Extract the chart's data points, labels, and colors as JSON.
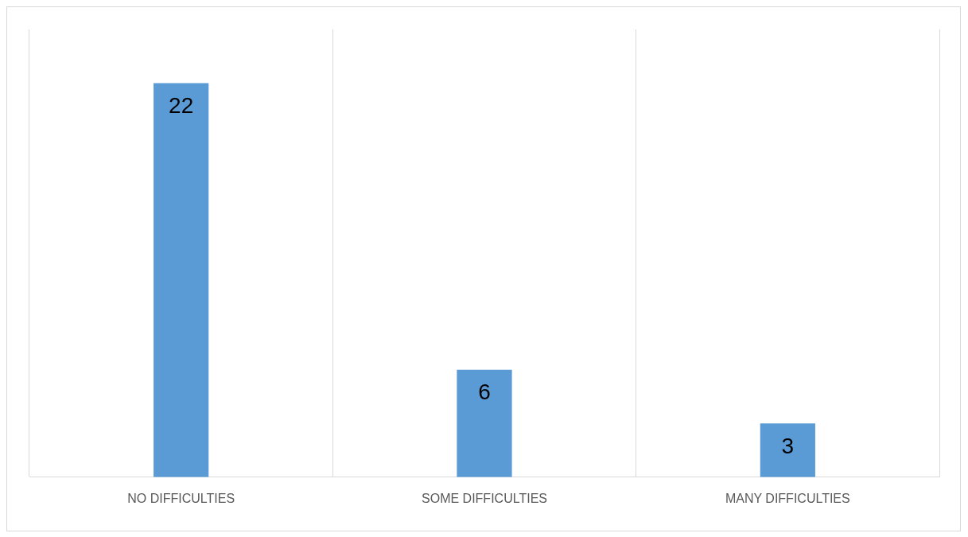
{
  "chart_data": {
    "type": "bar",
    "categories": [
      "NO DIFFICULTIES",
      "SOME DIFFICULTIES",
      "MANY DIFFICULTIES"
    ],
    "values": [
      22,
      6,
      3
    ],
    "color": "#5b9bd5",
    "data_labels": true,
    "grid": "x",
    "tick_labels": "x",
    "legend": false
  }
}
